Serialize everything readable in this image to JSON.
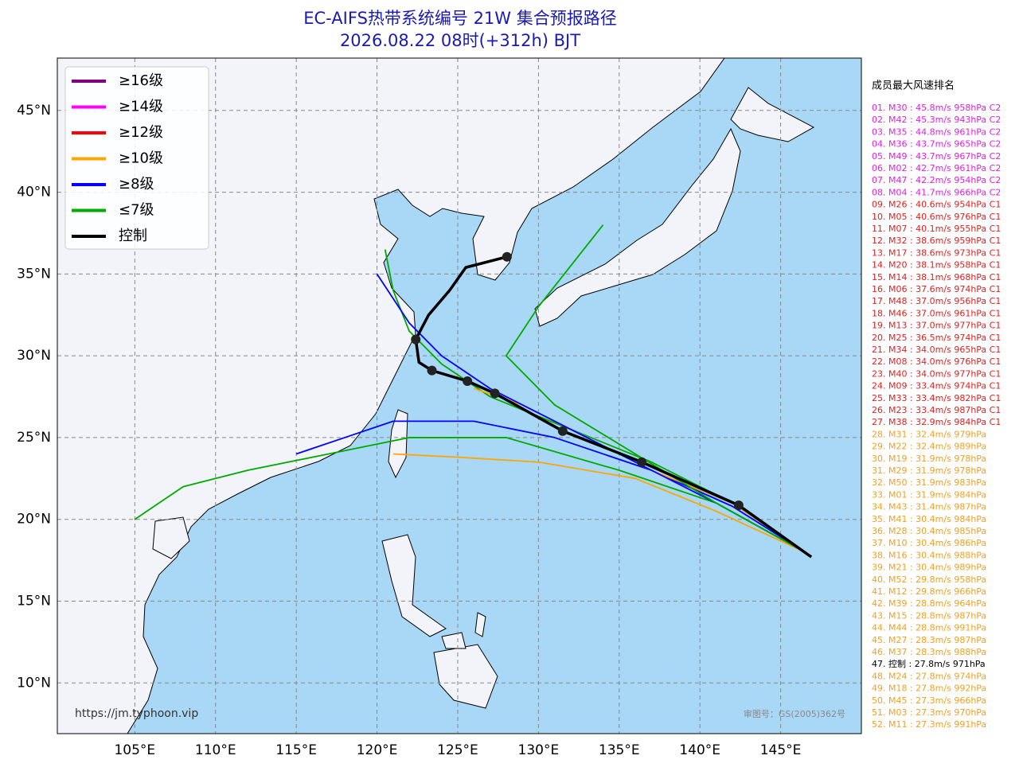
{
  "title": "EC-AIFS热带系统编号 21W 集合预报路径",
  "subtitle": "2026.08.22 08时(+312h) BJT",
  "map": {
    "xlim": [
      100.2,
      150
    ],
    "ylim": [
      6.9,
      48.2
    ],
    "xticks": [
      {
        "value": 105,
        "label": "105°E"
      },
      {
        "value": 110,
        "label": "110°E"
      },
      {
        "value": 115,
        "label": "115°E"
      },
      {
        "value": 120,
        "label": "120°E"
      },
      {
        "value": 125,
        "label": "125°E"
      },
      {
        "value": 130,
        "label": "130°E"
      },
      {
        "value": 135,
        "label": "135°E"
      },
      {
        "value": 140,
        "label": "140°E"
      },
      {
        "value": 145,
        "label": "145°E"
      }
    ],
    "yticks": [
      {
        "value": 10,
        "label": "10°N"
      },
      {
        "value": 15,
        "label": "15°N"
      },
      {
        "value": 20,
        "label": "20°N"
      },
      {
        "value": 25,
        "label": "25°N"
      },
      {
        "value": 30,
        "label": "30°N"
      },
      {
        "value": 35,
        "label": "35°N"
      },
      {
        "value": 40,
        "label": "40°N"
      },
      {
        "value": 45,
        "label": "45°N"
      }
    ],
    "grid": true,
    "legend": [
      {
        "label": "≥16级",
        "color": "#800080"
      },
      {
        "label": "≥14级",
        "color": "#ff00ff"
      },
      {
        "label": "≥12级",
        "color": "#ff0000"
      },
      {
        "label": "≥10级",
        "color": "#ffa500"
      },
      {
        "label": "≥8级",
        "color": "#0000ff"
      },
      {
        "label": "≤7级",
        "color": "#00aa00"
      },
      {
        "label": "控制",
        "color": "#000000"
      }
    ],
    "members": [
      {
        "color": "#00aa00",
        "lon": [
          146.5,
          142,
          137,
          132,
          127,
          124,
          122,
          121,
          120.5
        ],
        "lat": [
          18,
          21,
          23.5,
          25.5,
          27.5,
          29.5,
          31.5,
          34,
          36.5
        ]
      },
      {
        "color": "#0000ff",
        "lon": [
          146.5,
          142,
          137,
          131,
          126,
          121,
          118,
          115
        ],
        "lat": [
          18,
          20.8,
          23,
          25,
          26,
          26,
          25,
          24
        ]
      },
      {
        "color": "#00aa00",
        "lon": [
          146.5,
          141,
          135,
          128,
          122,
          117,
          112,
          108,
          105
        ],
        "lat": [
          18,
          21,
          23,
          25,
          25,
          24,
          23,
          22,
          20
        ]
      },
      {
        "color": "#ffa500",
        "lon": [
          146.5,
          141,
          136,
          130,
          125,
          121
        ],
        "lat": [
          18,
          20.5,
          22.5,
          23.5,
          23.8,
          24
        ]
      },
      {
        "color": "#ffa500",
        "lon": [
          146.5,
          142,
          137,
          133,
          129,
          126
        ],
        "lat": [
          18,
          21,
          23,
          25,
          27,
          28
        ]
      },
      {
        "color": "#0000ff",
        "lon": [
          146.5,
          141,
          136,
          131,
          127,
          124,
          122,
          120
        ],
        "lat": [
          18,
          21,
          23.5,
          26,
          28,
          30,
          32,
          35
        ]
      },
      {
        "color": "#00aa00",
        "lon": [
          146.5,
          141,
          136,
          131,
          128,
          130,
          134
        ],
        "lat": [
          18,
          21,
          24,
          27,
          30,
          33,
          38
        ]
      }
    ],
    "control_track": {
      "lon": [
        146.9,
        142.4,
        136.4,
        131.5,
        127.3,
        125.6,
        123.4,
        122.6,
        122.4,
        123.2,
        124.5,
        125.5,
        128.05
      ],
      "lat": [
        17.7,
        20.86,
        23.5,
        25.4,
        27.7,
        28.45,
        29.1,
        29.6,
        31.0,
        32.5,
        34.0,
        35.4,
        36.05
      ]
    },
    "control_points": {
      "lon": [
        142.4,
        136.4,
        131.5,
        127.3,
        125.6,
        123.4,
        122.4,
        128.05
      ],
      "lat": [
        20.86,
        23.5,
        25.4,
        27.7,
        28.45,
        29.1,
        31.0,
        36.05
      ]
    },
    "source": "https://jm.typhoon.vip",
    "approval": "审图号：GS(2005)362号"
  },
  "ranking": {
    "title": "成员最大风速排名",
    "items": [
      {
        "text": "01. M30 : 45.8m/s 958hPa C2",
        "color": "#e020e0"
      },
      {
        "text": "02. M42 : 45.3m/s 943hPa C2",
        "color": "#e020e0"
      },
      {
        "text": "03. M35 : 44.8m/s 961hPa C2",
        "color": "#e020e0"
      },
      {
        "text": "04. M36 : 43.7m/s 965hPa C2",
        "color": "#e020e0"
      },
      {
        "text": "05. M49 : 43.7m/s 967hPa C2",
        "color": "#e020e0"
      },
      {
        "text": "06. M02 : 42.7m/s 961hPa C2",
        "color": "#e020e0"
      },
      {
        "text": "07. M47 : 42.2m/s 954hPa C2",
        "color": "#e020e0"
      },
      {
        "text": "08. M04 : 41.7m/s 966hPa C2",
        "color": "#e020e0"
      },
      {
        "text": "09. M26 : 40.6m/s 954hPa C1",
        "color": "#e0201e"
      },
      {
        "text": "10. M05 : 40.6m/s 976hPa C1",
        "color": "#e0201e"
      },
      {
        "text": "11. M07 : 40.1m/s 955hPa C1",
        "color": "#e0201e"
      },
      {
        "text": "12. M32 : 38.6m/s 959hPa C1",
        "color": "#e0201e"
      },
      {
        "text": "13. M17 : 38.6m/s 973hPa C1",
        "color": "#e0201e"
      },
      {
        "text": "14. M20 : 38.1m/s 958hPa C1",
        "color": "#e0201e"
      },
      {
        "text": "15. M14 : 38.1m/s 968hPa C1",
        "color": "#e0201e"
      },
      {
        "text": "16. M06 : 37.6m/s 974hPa C1",
        "color": "#e0201e"
      },
      {
        "text": "17. M48 : 37.0m/s 956hPa C1",
        "color": "#e0201e"
      },
      {
        "text": "18. M46 : 37.0m/s 961hPa C1",
        "color": "#e0201e"
      },
      {
        "text": "19. M13 : 37.0m/s 977hPa C1",
        "color": "#e0201e"
      },
      {
        "text": "20. M25 : 36.5m/s 974hPa C1",
        "color": "#e0201e"
      },
      {
        "text": "21. M34 : 34.0m/s 965hPa C1",
        "color": "#e0201e"
      },
      {
        "text": "22. M08 : 34.0m/s 976hPa C1",
        "color": "#e0201e"
      },
      {
        "text": "23. M40 : 34.0m/s 977hPa C1",
        "color": "#e0201e"
      },
      {
        "text": "24. M09 : 33.4m/s 974hPa C1",
        "color": "#e0201e"
      },
      {
        "text": "25. M33 : 33.4m/s 982hPa C1",
        "color": "#e0201e"
      },
      {
        "text": "26. M23 : 33.4m/s 987hPa C1",
        "color": "#e0201e"
      },
      {
        "text": "27. M38 : 32.9m/s 984hPa C1",
        "color": "#e0201e"
      },
      {
        "text": "28. M31 : 32.4m/s 979hPa",
        "color": "#f0a020"
      },
      {
        "text": "29. M22 : 32.4m/s 989hPa",
        "color": "#f0a020"
      },
      {
        "text": "30. M19 : 31.9m/s 978hPa",
        "color": "#f0a020"
      },
      {
        "text": "31. M29 : 31.9m/s 978hPa",
        "color": "#f0a020"
      },
      {
        "text": "32. M50 : 31.9m/s 983hPa",
        "color": "#f0a020"
      },
      {
        "text": "33. M01 : 31.9m/s 984hPa",
        "color": "#f0a020"
      },
      {
        "text": "34. M43 : 31.4m/s 987hPa",
        "color": "#f0a020"
      },
      {
        "text": "35. M41 : 30.4m/s 984hPa",
        "color": "#f0a020"
      },
      {
        "text": "36. M28 : 30.4m/s 985hPa",
        "color": "#f0a020"
      },
      {
        "text": "37. M10 : 30.4m/s 986hPa",
        "color": "#f0a020"
      },
      {
        "text": "38. M16 : 30.4m/s 988hPa",
        "color": "#f0a020"
      },
      {
        "text": "39. M21 : 30.4m/s 989hPa",
        "color": "#f0a020"
      },
      {
        "text": "40. M52 : 29.8m/s 958hPa",
        "color": "#f0a020"
      },
      {
        "text": "41. M12 : 29.8m/s 966hPa",
        "color": "#f0a020"
      },
      {
        "text": "42. M39 : 28.8m/s 964hPa",
        "color": "#f0a020"
      },
      {
        "text": "43. M15 : 28.8m/s 987hPa",
        "color": "#f0a020"
      },
      {
        "text": "44. M44 : 28.8m/s 991hPa",
        "color": "#f0a020"
      },
      {
        "text": "45. M27 : 28.3m/s 987hPa",
        "color": "#f0a020"
      },
      {
        "text": "46. M37 : 28.3m/s 988hPa",
        "color": "#f0a020"
      },
      {
        "text": "47. 控制 : 27.8m/s 971hPa",
        "color": "#000000"
      },
      {
        "text": "48. M24 : 27.8m/s 974hPa",
        "color": "#f0a020"
      },
      {
        "text": "49. M18 : 27.8m/s 992hPa",
        "color": "#f0a020"
      },
      {
        "text": "50. M45 : 27.3m/s 966hPa",
        "color": "#f0a020"
      },
      {
        "text": "51. M03 : 27.3m/s 970hPa",
        "color": "#f0a020"
      },
      {
        "text": "52. M11 : 27.3m/s 991hPa",
        "color": "#f0a020"
      }
    ]
  }
}
